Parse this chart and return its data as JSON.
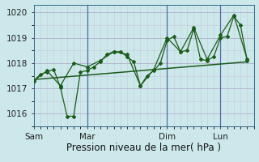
{
  "xlabel": "Pression niveau de la mer( hPa )",
  "bg_color": "#cce8ea",
  "grid_color_major": "#b0b0cc",
  "grid_color_minor": "#c8c8dd",
  "line_color": "#1a5c1a",
  "ylim": [
    1015.5,
    1020.3
  ],
  "yticks": [
    1016,
    1017,
    1018,
    1019,
    1020
  ],
  "xtick_labels": [
    "Sam",
    "Mar",
    "Dim",
    "Lun"
  ],
  "xtick_positions": [
    0,
    4,
    10,
    14
  ],
  "vline_positions": [
    4,
    10,
    14
  ],
  "xlabel_fontsize": 8.5,
  "tick_fontsize": 7.5,
  "series1_x": [
    0,
    0.5,
    1.0,
    1.5,
    2.0,
    2.5,
    3.0,
    3.5,
    4.0,
    4.5,
    5.0,
    5.5,
    6.0,
    6.5,
    7.0,
    7.5,
    8.0,
    8.5,
    9.0,
    9.5,
    10.0,
    10.5,
    11.0,
    11.5,
    12.0,
    12.5,
    13.0,
    13.5,
    14.0,
    14.5,
    15.0,
    15.5,
    16.0
  ],
  "series1_y": [
    1017.3,
    1017.55,
    1017.65,
    1017.75,
    1017.05,
    1015.9,
    1015.9,
    1017.65,
    1017.7,
    1017.85,
    1018.05,
    1018.35,
    1018.45,
    1018.45,
    1018.25,
    1018.05,
    1017.1,
    1017.5,
    1017.7,
    1018.0,
    1018.9,
    1019.05,
    1018.45,
    1018.5,
    1019.35,
    1018.15,
    1018.1,
    1018.25,
    1019.0,
    1019.05,
    1019.85,
    1019.5,
    1018.1
  ],
  "series2_x": [
    0,
    1.0,
    2.0,
    3.0,
    4.0,
    5.0,
    6.0,
    7.0,
    8.0,
    9.0,
    10.0,
    11.0,
    12.0,
    13.0,
    14.0,
    15.0,
    16.0
  ],
  "series2_y": [
    1017.3,
    1017.7,
    1017.1,
    1018.0,
    1017.85,
    1018.1,
    1018.45,
    1018.35,
    1017.1,
    1017.75,
    1019.0,
    1018.45,
    1019.4,
    1018.15,
    1019.1,
    1019.9,
    1018.15
  ],
  "trend_x": [
    0,
    16.0
  ],
  "trend_y": [
    1017.35,
    1018.05
  ],
  "xlim": [
    0,
    16.5
  ]
}
